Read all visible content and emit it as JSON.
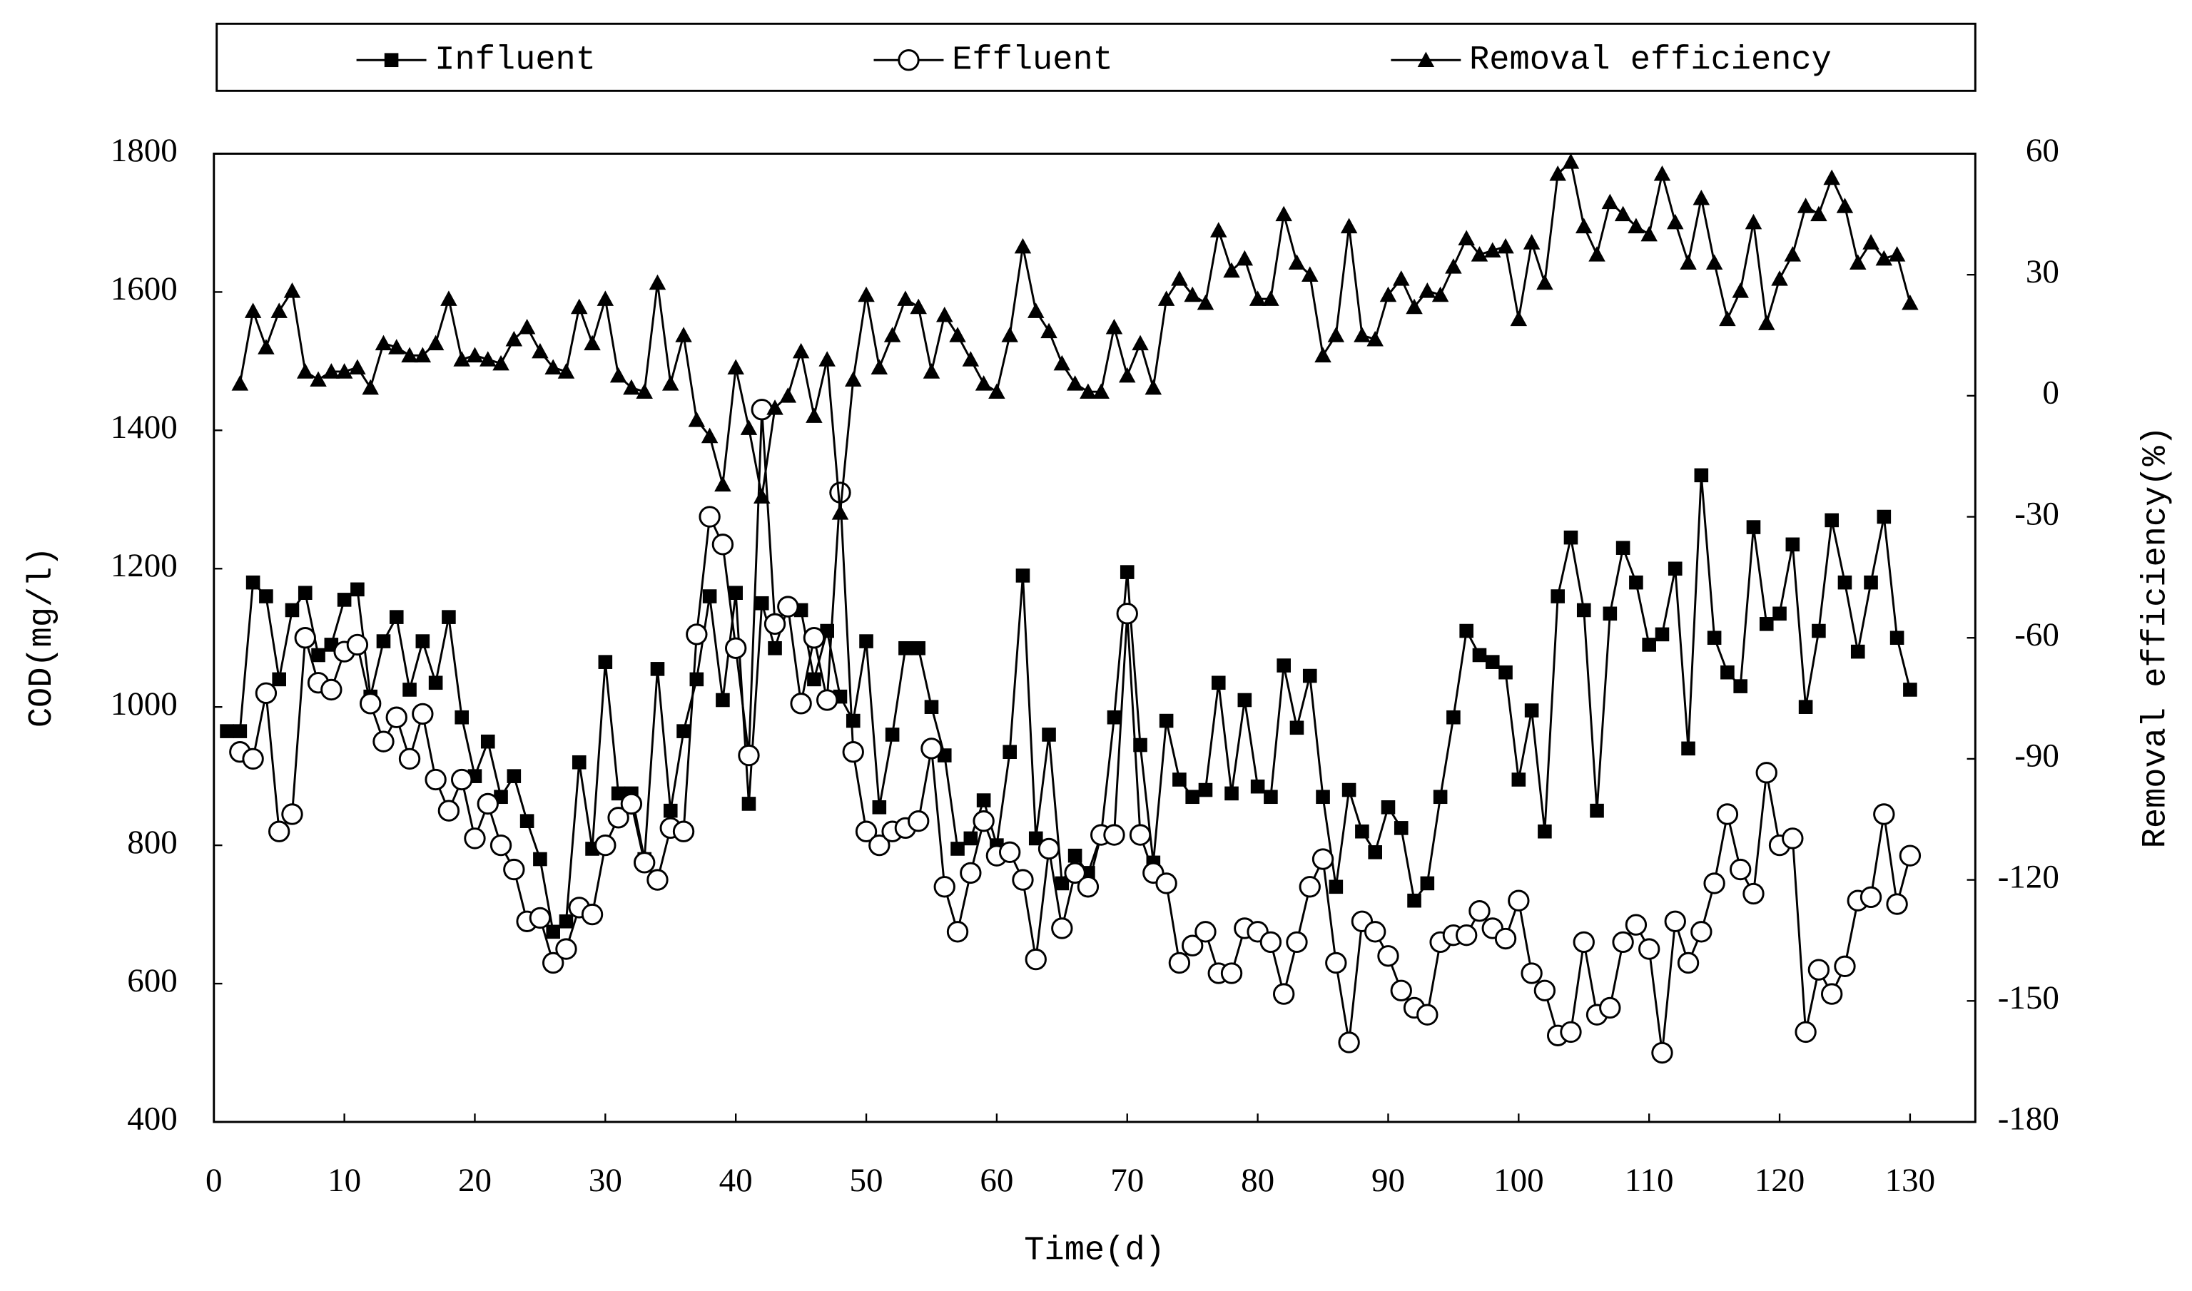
{
  "chart_data": {
    "type": "line",
    "xlabel": "Time(d)",
    "ylabel": "COD(mg/l)",
    "y2label": "Removal efficiency(%)",
    "legend": "top",
    "x": [
      1,
      2,
      3,
      4,
      5,
      6,
      7,
      8,
      9,
      10,
      11,
      12,
      13,
      14,
      15,
      16,
      17,
      18,
      19,
      20,
      21,
      22,
      23,
      24,
      25,
      26,
      27,
      28,
      29,
      30,
      31,
      32,
      33,
      34,
      35,
      36,
      37,
      38,
      39,
      40,
      41,
      42,
      43,
      44,
      45,
      46,
      47,
      48,
      49,
      50,
      51,
      52,
      53,
      54,
      55,
      56,
      57,
      58,
      59,
      60,
      61,
      62,
      63,
      64,
      65,
      66,
      67,
      68,
      69,
      70,
      71,
      72,
      73,
      74,
      75,
      76,
      77,
      78,
      79,
      80,
      81,
      82,
      83,
      84,
      85,
      86,
      87,
      88,
      89,
      90,
      91,
      92,
      93,
      94,
      95,
      96,
      97,
      98,
      99,
      100,
      101,
      102,
      103,
      104,
      105,
      106,
      107,
      108,
      109,
      110,
      111,
      112,
      113,
      114,
      115,
      116,
      117,
      118,
      119,
      120,
      121,
      122,
      123,
      124,
      125,
      126,
      127,
      128,
      129,
      130
    ],
    "xlim": [
      0,
      135
    ],
    "xticks": [
      0,
      10,
      20,
      30,
      40,
      50,
      60,
      70,
      80,
      90,
      100,
      110,
      120,
      130
    ],
    "ylim": [
      400,
      1800
    ],
    "yticks": [
      400,
      600,
      800,
      1000,
      1200,
      1400,
      1600,
      1800
    ],
    "y2lim": [
      -180,
      60
    ],
    "y2ticks": [
      -180,
      -150,
      -120,
      -90,
      -60,
      -30,
      0,
      30,
      60
    ],
    "series": [
      {
        "name": "Influent",
        "color": "#000000",
        "marker": "square",
        "values": [
          965,
          965,
          1180,
          1160,
          1040,
          1140,
          1165,
          1075,
          1090,
          1155,
          1170,
          1015,
          1095,
          1130,
          1025,
          1095,
          1035,
          1130,
          985,
          900,
          950,
          870,
          900,
          835,
          780,
          675,
          690,
          920,
          795,
          1065,
          875,
          875,
          780,
          1055,
          850,
          965,
          1040,
          1160,
          1010,
          1165,
          860,
          1150,
          1085,
          1145,
          1140,
          1040,
          1110,
          1015,
          980,
          1095,
          855,
          960,
          1085,
          1085,
          1000,
          930,
          795,
          810,
          865,
          800,
          935,
          1190,
          810,
          960,
          745,
          785,
          760,
          815,
          985,
          1195,
          945,
          775,
          980,
          895,
          870,
          880,
          1035,
          875,
          1010,
          885,
          870,
          1060,
          970,
          1045,
          870,
          740,
          880,
          820,
          790,
          855,
          825,
          720,
          745,
          870,
          985,
          1110,
          1075,
          1065,
          1050,
          895,
          995,
          820,
          1160,
          1245,
          1140,
          850,
          1135,
          1230,
          1180,
          1090,
          1105,
          1200,
          940,
          1335,
          1100,
          1050,
          1030,
          1260,
          1120,
          1135,
          1235,
          1000,
          1110,
          1270,
          1180,
          1080,
          1180,
          1275,
          1100,
          1025
        ]
      },
      {
        "name": "Effluent",
        "color": "#000000",
        "marker": "circle",
        "values": [
          null,
          935,
          925,
          1020,
          820,
          845,
          1100,
          1035,
          1025,
          1080,
          1090,
          1005,
          950,
          985,
          925,
          990,
          895,
          850,
          895,
          810,
          860,
          800,
          765,
          690,
          695,
          630,
          650,
          710,
          700,
          800,
          840,
          860,
          775,
          750,
          825,
          820,
          1105,
          1275,
          1235,
          1085,
          930,
          1430,
          1120,
          1145,
          1005,
          1100,
          1010,
          1310,
          935,
          820,
          800,
          820,
          825,
          835,
          940,
          740,
          675,
          760,
          835,
          785,
          790,
          750,
          635,
          795,
          680,
          760,
          740,
          815,
          815,
          1135,
          815,
          760,
          745,
          630,
          655,
          675,
          615,
          615,
          680,
          675,
          660,
          585,
          660,
          740,
          780,
          630,
          515,
          690,
          675,
          640,
          590,
          565,
          555,
          660,
          670,
          670,
          705,
          680,
          665,
          720,
          615,
          590,
          525,
          530,
          660,
          555,
          565,
          660,
          685,
          650,
          500,
          690,
          630,
          675,
          745,
          845,
          765,
          730,
          905,
          800,
          810,
          530,
          620,
          585,
          625,
          720,
          725,
          845,
          715,
          785
        ]
      },
      {
        "name": "Removal efficiency",
        "color": "#000000",
        "marker": "triangle",
        "axis": "y2",
        "values": [
          null,
          3,
          21,
          12,
          21,
          26,
          6,
          4,
          6,
          6,
          7,
          2,
          13,
          12,
          10,
          10,
          13,
          24,
          9,
          10,
          9,
          8,
          14,
          17,
          11,
          7,
          6,
          22,
          13,
          24,
          5,
          2,
          1,
          28,
          3,
          15,
          -6,
          -10,
          -22,
          7,
          -8,
          -25,
          -3,
          0,
          11,
          -5,
          9,
          -29,
          4,
          25,
          7,
          15,
          24,
          22,
          6,
          20,
          15,
          9,
          3,
          1,
          15,
          37,
          21,
          16,
          8,
          3,
          1,
          1,
          17,
          5,
          13,
          2,
          24,
          29,
          25,
          23,
          41,
          31,
          34,
          24,
          24,
          45,
          33,
          30,
          10,
          15,
          42,
          15,
          14,
          25,
          29,
          22,
          26,
          25,
          32,
          39,
          35,
          36,
          37,
          19,
          38,
          28,
          55,
          58,
          42,
          35,
          48,
          45,
          42,
          40,
          55,
          43,
          33,
          49,
          33,
          19,
          26,
          43,
          18,
          29,
          35,
          47,
          45,
          54,
          47,
          33,
          38,
          34,
          35,
          23
        ]
      }
    ]
  }
}
